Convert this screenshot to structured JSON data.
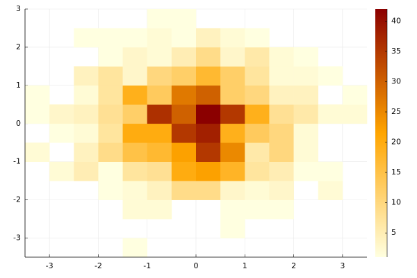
{
  "chart_data": {
    "type": "histogram2d",
    "xbins": [
      -3.5,
      -3,
      -2.5,
      -2,
      -1.5,
      -1,
      -0.5,
      0,
      0.5,
      1,
      1.5,
      2,
      2.5,
      3,
      3.5
    ],
    "ybins": [
      -3.5,
      -3,
      -2.5,
      -2,
      -1.5,
      -1,
      -0.5,
      0,
      0.5,
      1,
      1.5,
      2,
      2.5,
      3
    ],
    "counts": [
      [
        null,
        null,
        null,
        null,
        1,
        null,
        null,
        null,
        null,
        null,
        null,
        null,
        null,
        null
      ],
      [
        null,
        null,
        null,
        null,
        null,
        null,
        null,
        null,
        1,
        null,
        null,
        null,
        null,
        null
      ],
      [
        null,
        null,
        null,
        null,
        2,
        2,
        null,
        null,
        1,
        1,
        1,
        null,
        null,
        null
      ],
      [
        null,
        null,
        null,
        1,
        2,
        4,
        9,
        9,
        3,
        2,
        3,
        null,
        2,
        null
      ],
      [
        null,
        2,
        5,
        1,
        7,
        8,
        20,
        22,
        18,
        7,
        5,
        1,
        1,
        null
      ],
      [
        2,
        null,
        4,
        9,
        15,
        17,
        22,
        35,
        25,
        6,
        10,
        2,
        null,
        null
      ],
      [
        null,
        1,
        2,
        7,
        20,
        20,
        35,
        38,
        19,
        13,
        10,
        2,
        null,
        null
      ],
      [
        1,
        3,
        4,
        8,
        12,
        36,
        30,
        42,
        35,
        19,
        8,
        6,
        2,
        2
      ],
      [
        1,
        null,
        2,
        7,
        19,
        13,
        27,
        30,
        12,
        10,
        4,
        4,
        null,
        1
      ],
      [
        null,
        null,
        4,
        7,
        3,
        10,
        12,
        17,
        12,
        7,
        2,
        2,
        1,
        null
      ],
      [
        null,
        null,
        null,
        1,
        3,
        2,
        5,
        9,
        3,
        6,
        2,
        1,
        null,
        null
      ],
      [
        null,
        null,
        1,
        1,
        1,
        2,
        1,
        4,
        2,
        1,
        null,
        null,
        null,
        null
      ],
      [
        null,
        null,
        null,
        null,
        null,
        1,
        1,
        null,
        null,
        null,
        null,
        null,
        null,
        null
      ]
    ],
    "xlim": [
      -3.5,
      3.5
    ],
    "ylim": [
      -3.5,
      3
    ],
    "xticks": [
      -3,
      -2,
      -1,
      0,
      1,
      2,
      3
    ],
    "yticks": [
      -3,
      -2,
      -1,
      0,
      1,
      2,
      3
    ],
    "clim": [
      1,
      42
    ],
    "cticks": [
      5,
      10,
      15,
      20,
      25,
      30,
      35,
      40
    ],
    "colormap": [
      "#ffffe0",
      "#ffa500",
      "#8b0000"
    ],
    "grid": true
  }
}
